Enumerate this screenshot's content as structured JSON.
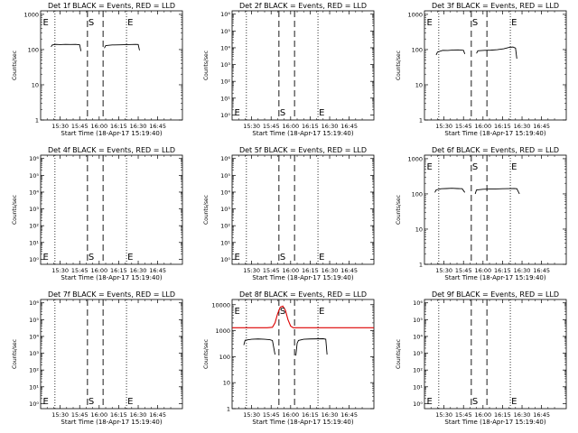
{
  "chart_data": [
    {
      "type": "line",
      "title": "Det 1f BLACK = Events, RED = LLD",
      "xlabel": "Start Time (18-Apr-17 15:19:40)",
      "ylabel": "Counts/sec",
      "x_tick_labels": [
        "15:30",
        "15:45",
        "16:00",
        "16:15",
        "16:30",
        "16:45"
      ],
      "y_scale": "log",
      "y_tick_labels": [
        "1",
        "10",
        "100",
        "1000"
      ],
      "ylim_log10": [
        0,
        3.1
      ],
      "xlim_minutes": [
        15,
        124
      ],
      "grid": false,
      "vertical_lines": {
        "dotted_minutes": [
          26,
          81
        ],
        "dashed_minutes": [
          51,
          63
        ]
      },
      "markers": [
        {
          "label": "E",
          "minute": 16
        },
        {
          "label": "S",
          "minute": 51
        },
        {
          "label": "E",
          "minute": 81
        }
      ],
      "marker_position": "top",
      "series": [
        {
          "color": "#000000",
          "segments": [
            [
              [
                23,
                120
              ],
              [
                24,
                135
              ],
              [
                27,
                140
              ],
              [
                30,
                138
              ],
              [
                34,
                140
              ],
              [
                38,
                139
              ],
              [
                42,
                140
              ],
              [
                45,
                136
              ],
              [
                46,
                90
              ]
            ],
            [
              [
                64,
                110
              ],
              [
                65,
                130
              ],
              [
                70,
                135
              ],
              [
                76,
                136
              ],
              [
                82,
                138
              ],
              [
                88,
                140
              ],
              [
                90,
                139
              ],
              [
                91,
                95
              ]
            ]
          ]
        }
      ]
    },
    {
      "type": "line",
      "title": "Det 2f BLACK = Events, RED = LLD",
      "xlabel": "Start Time (18-Apr-17 15:19:40)",
      "ylabel": "Counts/sec",
      "x_tick_labels": [
        "15:30",
        "15:45",
        "16:00",
        "16:15",
        "16:30",
        "16:45"
      ],
      "y_scale": "log",
      "y_tick_labels": [
        "10⁰",
        "10¹",
        "10²",
        "10³",
        "10⁴",
        "10⁵",
        "10⁶"
      ],
      "ylim_log10": [
        -0.3,
        6.2
      ],
      "xlim_minutes": [
        15,
        124
      ],
      "grid": false,
      "vertical_lines": {
        "dotted_minutes": [
          26,
          81
        ],
        "dashed_minutes": [
          51,
          63
        ]
      },
      "markers": [
        {
          "label": "E",
          "minute": 16
        },
        {
          "label": "S",
          "minute": 51
        },
        {
          "label": "E",
          "minute": 81
        }
      ],
      "marker_position": "bottom",
      "series": []
    },
    {
      "type": "line",
      "title": "Det 3f BLACK = Events, RED = LLD",
      "xlabel": "Start Time (18-Apr-17 15:19:40)",
      "ylabel": "Counts/sec",
      "x_tick_labels": [
        "15:30",
        "15:45",
        "16:00",
        "16:15",
        "16:30",
        "16:45"
      ],
      "y_scale": "log",
      "y_tick_labels": [
        "1",
        "10",
        "100",
        "1000"
      ],
      "ylim_log10": [
        0,
        3.1
      ],
      "xlim_minutes": [
        15,
        124
      ],
      "grid": false,
      "vertical_lines": {
        "dotted_minutes": [
          26,
          81
        ],
        "dashed_minutes": [
          51,
          63
        ]
      },
      "markers": [
        {
          "label": "E",
          "minute": 16
        },
        {
          "label": "S",
          "minute": 51
        },
        {
          "label": "E",
          "minute": 81
        }
      ],
      "marker_position": "top",
      "series": [
        {
          "color": "#000000",
          "segments": [
            [
              [
                24,
                70
              ],
              [
                25,
                85
              ],
              [
                29,
                95
              ],
              [
                33,
                94
              ],
              [
                37,
                97
              ],
              [
                41,
                98
              ],
              [
                45,
                95
              ],
              [
                46,
                75
              ]
            ],
            [
              [
                55,
                78
              ],
              [
                56,
                92
              ],
              [
                61,
                95
              ],
              [
                66,
                96
              ],
              [
                71,
                99
              ],
              [
                76,
                105
              ],
              [
                80,
                115
              ],
              [
                83,
                118
              ],
              [
                85,
                110
              ],
              [
                86,
                55
              ]
            ]
          ]
        }
      ]
    },
    {
      "type": "line",
      "title": "Det 4f BLACK = Events, RED = LLD",
      "xlabel": "Start Time (18-Apr-17 15:19:40)",
      "ylabel": "Counts/sec",
      "x_tick_labels": [
        "15:30",
        "15:45",
        "16:00",
        "16:15",
        "16:30",
        "16:45"
      ],
      "y_scale": "log",
      "y_tick_labels": [
        "10⁰",
        "10¹",
        "10²",
        "10³",
        "10⁴",
        "10⁵",
        "10⁶"
      ],
      "ylim_log10": [
        -0.3,
        6.2
      ],
      "xlim_minutes": [
        15,
        124
      ],
      "grid": false,
      "vertical_lines": {
        "dotted_minutes": [
          26,
          81
        ],
        "dashed_minutes": [
          51,
          63
        ]
      },
      "markers": [
        {
          "label": "E",
          "minute": 16
        },
        {
          "label": "S",
          "minute": 51
        },
        {
          "label": "E",
          "minute": 81
        }
      ],
      "marker_position": "bottom",
      "series": []
    },
    {
      "type": "line",
      "title": "Det 5f BLACK = Events, RED = LLD",
      "xlabel": "Start Time (18-Apr-17 15:19:40)",
      "ylabel": "Counts/sec",
      "x_tick_labels": [
        "15:30",
        "15:45",
        "16:00",
        "16:15",
        "16:30",
        "16:45"
      ],
      "y_scale": "log",
      "y_tick_labels": [
        "10⁰",
        "10¹",
        "10²",
        "10³",
        "10⁴",
        "10⁵",
        "10⁶"
      ],
      "ylim_log10": [
        -0.3,
        6.2
      ],
      "xlim_minutes": [
        15,
        124
      ],
      "grid": false,
      "vertical_lines": {
        "dotted_minutes": [
          26,
          81
        ],
        "dashed_minutes": [
          51,
          63
        ]
      },
      "markers": [
        {
          "label": "E",
          "minute": 16
        },
        {
          "label": "S",
          "minute": 51
        },
        {
          "label": "E",
          "minute": 81
        }
      ],
      "marker_position": "bottom",
      "series": []
    },
    {
      "type": "line",
      "title": "Det 6f BLACK = Events, RED = LLD",
      "xlabel": "Start Time (18-Apr-17 15:19:40)",
      "ylabel": "Counts/sec",
      "x_tick_labels": [
        "15:30",
        "15:45",
        "16:00",
        "16:15",
        "16:30",
        "16:45"
      ],
      "y_scale": "log",
      "y_tick_labels": [
        "1",
        "10",
        "100",
        "1000"
      ],
      "ylim_log10": [
        0,
        3.1
      ],
      "xlim_minutes": [
        15,
        124
      ],
      "grid": false,
      "vertical_lines": {
        "dotted_minutes": [
          26,
          81
        ],
        "dashed_minutes": [
          51,
          63
        ]
      },
      "markers": [
        {
          "label": "E",
          "minute": 16
        },
        {
          "label": "S",
          "minute": 51
        },
        {
          "label": "E",
          "minute": 81
        }
      ],
      "marker_position": "top",
      "series": [
        {
          "color": "#000000",
          "segments": [
            [
              [
                23,
                110
              ],
              [
                24,
                130
              ],
              [
                28,
                140
              ],
              [
                32,
                142
              ],
              [
                36,
                145
              ],
              [
                40,
                142
              ],
              [
                44,
                140
              ],
              [
                46,
                110
              ]
            ],
            [
              [
                54,
                100
              ],
              [
                55,
                130
              ],
              [
                60,
                135
              ],
              [
                65,
                137
              ],
              [
                70,
                138
              ],
              [
                75,
                140
              ],
              [
                80,
                141
              ],
              [
                84,
                142
              ],
              [
                86,
                140
              ],
              [
                88,
                100
              ]
            ]
          ]
        }
      ]
    },
    {
      "type": "line",
      "title": "Det 7f BLACK = Events, RED = LLD",
      "xlabel": "Start Time (18-Apr-17 15:19:40)",
      "ylabel": "Counts/sec",
      "x_tick_labels": [
        "15:30",
        "15:45",
        "16:00",
        "16:15",
        "16:30",
        "16:45"
      ],
      "y_scale": "log",
      "y_tick_labels": [
        "10⁰",
        "10¹",
        "10²",
        "10³",
        "10⁴",
        "10⁵",
        "10⁶"
      ],
      "ylim_log10": [
        -0.3,
        6.2
      ],
      "xlim_minutes": [
        15,
        124
      ],
      "grid": false,
      "vertical_lines": {
        "dotted_minutes": [
          26,
          81
        ],
        "dashed_minutes": [
          51,
          63
        ]
      },
      "markers": [
        {
          "label": "E",
          "minute": 16
        },
        {
          "label": "S",
          "minute": 51
        },
        {
          "label": "E",
          "minute": 81
        }
      ],
      "marker_position": "bottom",
      "series": []
    },
    {
      "type": "line",
      "title": "Det 8f BLACK = Events, RED = LLD",
      "xlabel": "Start Time (18-Apr-17 15:19:40)",
      "ylabel": "Counts/sec",
      "x_tick_labels": [
        "15:30",
        "15:45",
        "16:00",
        "16:15",
        "16:30",
        "16:45"
      ],
      "y_scale": "log",
      "y_tick_labels": [
        "1",
        "10",
        "100",
        "1000",
        "10000"
      ],
      "ylim_log10": [
        0,
        4.2
      ],
      "xlim_minutes": [
        15,
        124
      ],
      "grid": false,
      "vertical_lines": {
        "dotted_minutes": [
          26,
          81
        ],
        "dashed_minutes": [
          51,
          63
        ]
      },
      "markers": [
        {
          "label": "E",
          "minute": 16
        },
        {
          "label": "S",
          "minute": 51
        },
        {
          "label": "E",
          "minute": 81
        }
      ],
      "marker_position": "top",
      "series": [
        {
          "color": "#000000",
          "segments": [
            [
              [
                24,
                280
              ],
              [
                25,
                430
              ],
              [
                30,
                470
              ],
              [
                35,
                480
              ],
              [
                40,
                470
              ],
              [
                44,
                450
              ],
              [
                46,
                420
              ],
              [
                48,
                120
              ]
            ],
            [
              [
                64,
                110
              ],
              [
                65,
                330
              ],
              [
                66,
                420
              ],
              [
                70,
                470
              ],
              [
                75,
                480
              ],
              [
                80,
                485
              ],
              [
                85,
                490
              ],
              [
                87,
                470
              ],
              [
                88,
                120
              ]
            ]
          ]
        },
        {
          "color": "#dd0000",
          "segments": [
            [
              [
                15,
                1300
              ],
              [
                42,
                1300
              ],
              [
                46,
                1350
              ],
              [
                48,
                2000
              ],
              [
                50,
                4500
              ],
              [
                52,
                8000
              ],
              [
                54,
                8800
              ],
              [
                56,
                6000
              ],
              [
                58,
                2600
              ],
              [
                60,
                1500
              ],
              [
                62,
                1300
              ],
              [
                124,
                1300
              ]
            ]
          ]
        }
      ]
    },
    {
      "type": "line",
      "title": "Det 9f BLACK = Events, RED = LLD",
      "xlabel": "Start Time (18-Apr-17 15:19:40)",
      "ylabel": "Counts/sec",
      "x_tick_labels": [
        "15:30",
        "15:45",
        "16:00",
        "16:15",
        "16:30",
        "16:45"
      ],
      "y_scale": "log",
      "y_tick_labels": [
        "10⁰",
        "10¹",
        "10²",
        "10³",
        "10⁴",
        "10⁵",
        "10⁶"
      ],
      "ylim_log10": [
        -0.3,
        6.2
      ],
      "xlim_minutes": [
        15,
        124
      ],
      "grid": false,
      "vertical_lines": {
        "dotted_minutes": [
          26,
          81
        ],
        "dashed_minutes": [
          51,
          63
        ]
      },
      "markers": [
        {
          "label": "E",
          "minute": 16
        },
        {
          "label": "S",
          "minute": 51
        },
        {
          "label": "E",
          "minute": 81
        }
      ],
      "marker_position": "bottom",
      "series": []
    }
  ]
}
